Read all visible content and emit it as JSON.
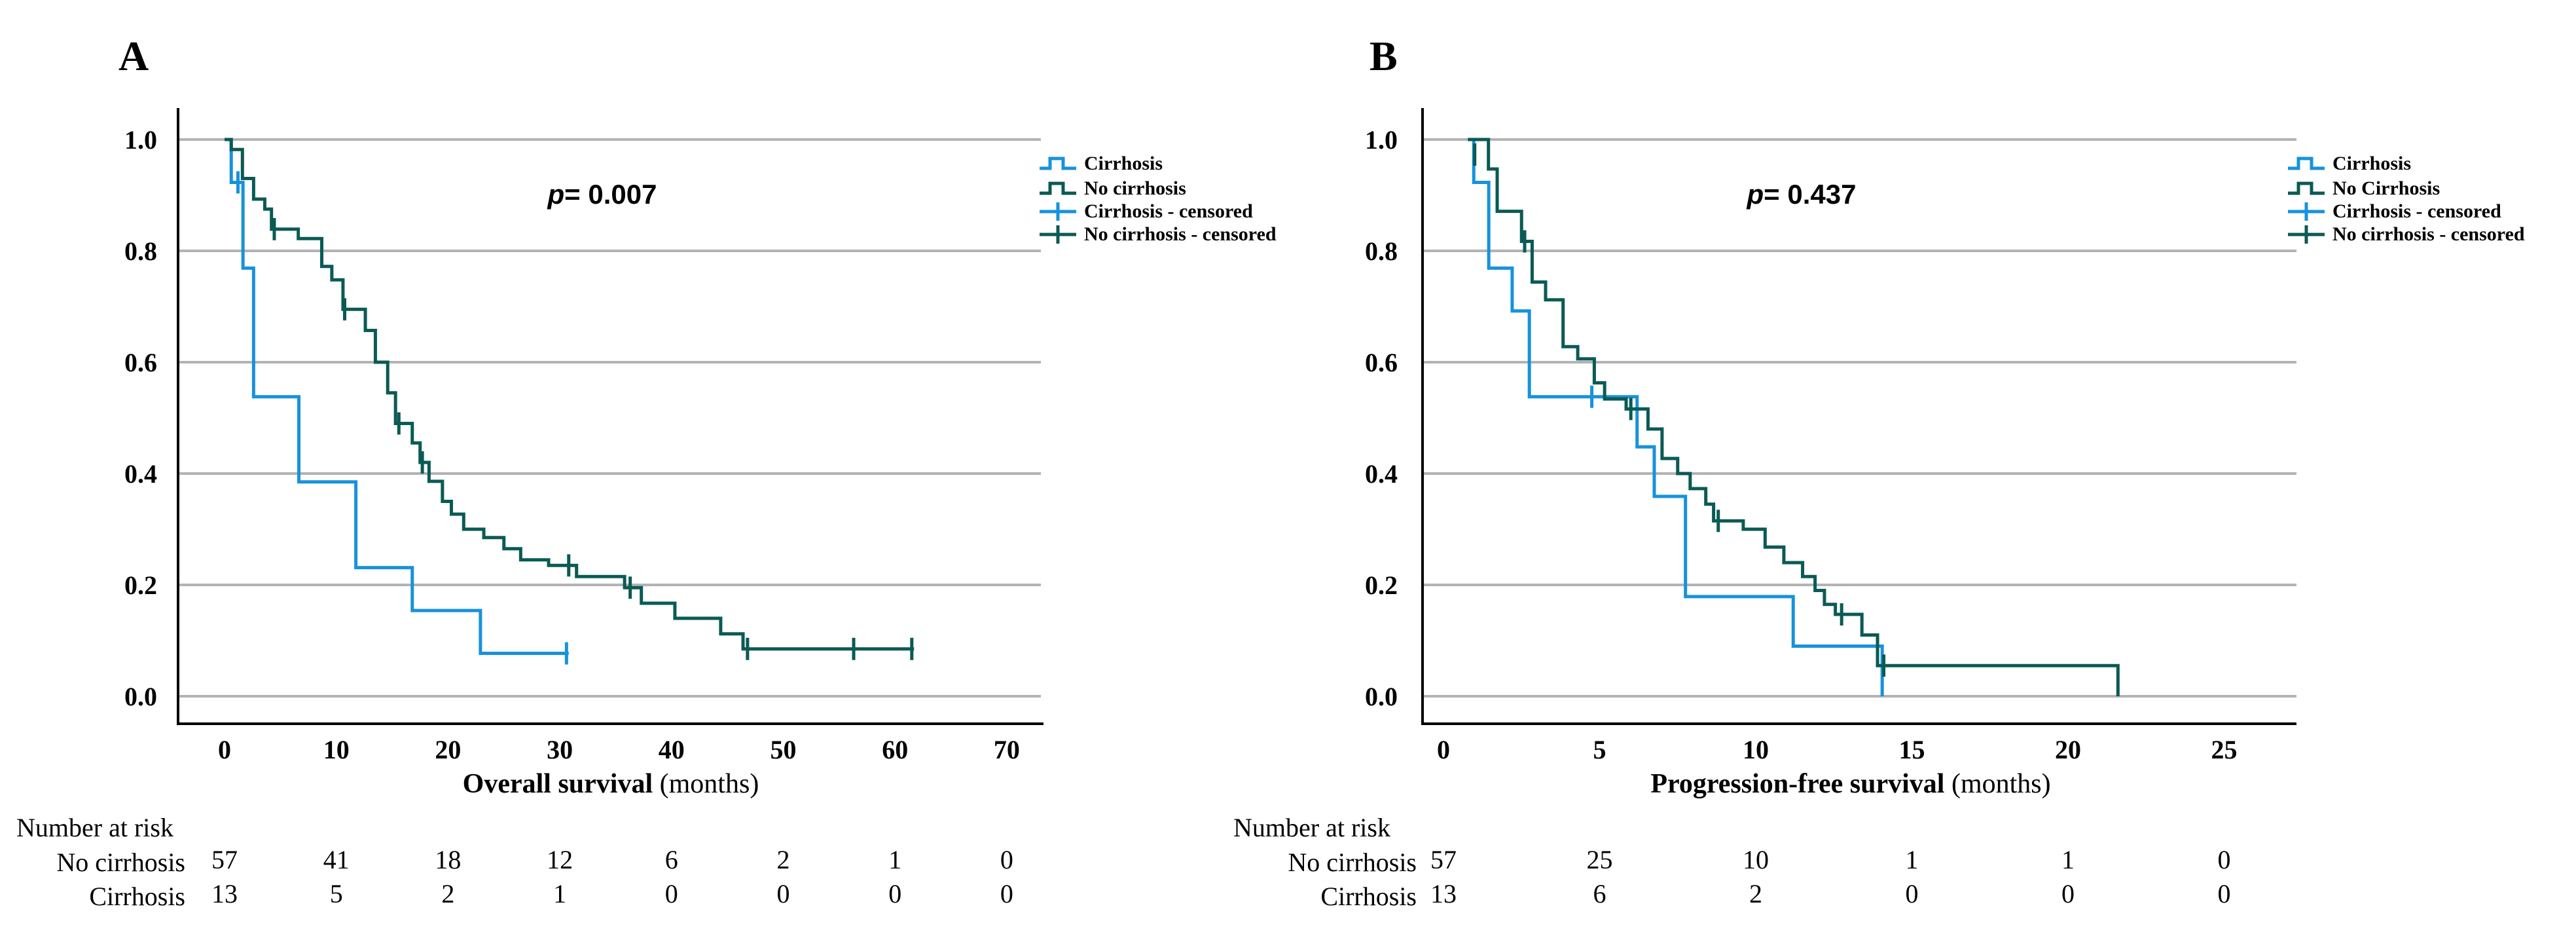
{
  "colors": {
    "cirrhosis": "#1792DB",
    "no_cirrhosis": "#0B5A54",
    "grid": "#B3B3B3",
    "axis": "#000000"
  },
  "chart_data": [
    {
      "type": "line",
      "subtype": "kaplan-meier-step",
      "panel_label": "A",
      "title": "",
      "p_value": {
        "symbol": "p",
        "rest": "= 0.007"
      },
      "xlabel_bold": "Overall survival",
      "xlabel_unit": " (months)",
      "ylabel": "",
      "xticks": [
        0,
        10,
        20,
        30,
        40,
        50,
        60,
        70
      ],
      "yticks": [
        "1.0",
        "0.8",
        "0.6",
        "0.4",
        "0.2",
        "0.0"
      ],
      "xlim": [
        0,
        73.5
      ],
      "ylim": [
        0,
        1
      ],
      "grid": true,
      "legend_position": "outside-top-right",
      "legend": [
        {
          "label": "Cirrhosis",
          "glyph": "step",
          "color_key": "cirrhosis"
        },
        {
          "label": "No cirrhosis",
          "glyph": "step",
          "color_key": "no_cirrhosis"
        },
        {
          "label": "Cirrhosis - censored",
          "glyph": "plus",
          "color_key": "cirrhosis"
        },
        {
          "label": "No cirrhosis - censored",
          "glyph": "plus",
          "color_key": "no_cirrhosis"
        }
      ],
      "series": [
        {
          "name": "Cirrhosis",
          "color_key": "cirrhosis",
          "steps": [
            [
              0,
              1.0
            ],
            [
              0.6,
              0.923
            ],
            [
              1.65,
              0.769
            ],
            [
              2.6,
              0.538
            ],
            [
              6.65,
              0.385
            ],
            [
              11.75,
              0.231
            ],
            [
              16.8,
              0.154
            ],
            [
              22.9,
              0.077
            ]
          ],
          "end": 30.8,
          "censored": [
            [
              1.2,
              0.923
            ],
            [
              30.6,
              0.077
            ]
          ]
        },
        {
          "name": "No cirrhosis",
          "color_key": "no_cirrhosis",
          "steps": [
            [
              0,
              1.0
            ],
            [
              0.6,
              0.982
            ],
            [
              1.6,
              0.93
            ],
            [
              2.6,
              0.893
            ],
            [
              3.6,
              0.875
            ],
            [
              4.2,
              0.839
            ],
            [
              6.6,
              0.822
            ],
            [
              8.7,
              0.772
            ],
            [
              9.6,
              0.748
            ],
            [
              10.6,
              0.695
            ],
            [
              12.6,
              0.657
            ],
            [
              13.5,
              0.6
            ],
            [
              14.6,
              0.545
            ],
            [
              15.3,
              0.49
            ],
            [
              16.8,
              0.455
            ],
            [
              17.5,
              0.42
            ],
            [
              18.3,
              0.386
            ],
            [
              19.5,
              0.35
            ],
            [
              20.3,
              0.327
            ],
            [
              21.4,
              0.3
            ],
            [
              23.2,
              0.285
            ],
            [
              25.0,
              0.265
            ],
            [
              26.5,
              0.245
            ],
            [
              29.0,
              0.235
            ],
            [
              31.5,
              0.215
            ],
            [
              35.8,
              0.195
            ],
            [
              37.3,
              0.167
            ],
            [
              40.3,
              0.14
            ],
            [
              44.4,
              0.112
            ],
            [
              46.4,
              0.085
            ]
          ],
          "end": 61.7,
          "censored": [
            [
              4.45,
              0.839
            ],
            [
              10.75,
              0.695
            ],
            [
              15.6,
              0.49
            ],
            [
              17.7,
              0.42
            ],
            [
              30.8,
              0.235
            ],
            [
              36.3,
              0.195
            ],
            [
              46.8,
              0.085
            ],
            [
              56.3,
              0.085
            ],
            [
              61.5,
              0.085
            ]
          ]
        }
      ],
      "number_at_risk": {
        "header": "Number at risk",
        "rows": [
          {
            "label": "No cirrhosis",
            "values": [
              "57",
              "41",
              "18",
              "12",
              "6",
              "2",
              "1",
              "0"
            ]
          },
          {
            "label": "Cirrhosis",
            "values": [
              "13",
              "5",
              "2",
              "1",
              "0",
              "0",
              "0",
              "0"
            ]
          }
        ]
      }
    },
    {
      "type": "line",
      "subtype": "kaplan-meier-step",
      "panel_label": "B",
      "title": "",
      "p_value": {
        "symbol": "p",
        "rest": "= 0.437"
      },
      "xlabel_bold": "Progression-free survival",
      "xlabel_unit": " (months)",
      "ylabel": "",
      "xticks": [
        0,
        5,
        10,
        15,
        20,
        25
      ],
      "yticks": [
        "1.0",
        "0.8",
        "0.6",
        "0.4",
        "0.2",
        "0.0"
      ],
      "xlim": [
        0,
        27.3
      ],
      "ylim": [
        0,
        1
      ],
      "grid": true,
      "legend_position": "outside-top-right",
      "legend": [
        {
          "label": "Cirrhosis",
          "glyph": "step",
          "color_key": "cirrhosis"
        },
        {
          "label": "No Cirrhosis",
          "glyph": "step",
          "color_key": "no_cirrhosis"
        },
        {
          "label": "Cirrhosis - censored",
          "glyph": "plus",
          "color_key": "cirrhosis"
        },
        {
          "label": "No cirrhosis - censored",
          "glyph": "plus",
          "color_key": "no_cirrhosis"
        }
      ],
      "series": [
        {
          "name": "Cirrhosis",
          "color_key": "cirrhosis",
          "steps": [
            [
              0.82,
              1.0
            ],
            [
              0.97,
              0.923
            ],
            [
              1.45,
              0.769
            ],
            [
              2.2,
              0.692
            ],
            [
              2.75,
              0.538
            ],
            [
              6.2,
              0.448
            ],
            [
              6.75,
              0.359
            ],
            [
              7.75,
              0.179
            ],
            [
              11.2,
              0.09
            ],
            [
              14.05,
              0.0
            ]
          ],
          "end": 14.05,
          "censored": [
            [
              4.75,
              0.538
            ]
          ]
        },
        {
          "name": "No Cirrhosis",
          "color_key": "no_cirrhosis",
          "steps": [
            [
              0.78,
              1.0
            ],
            [
              1.44,
              0.947
            ],
            [
              1.72,
              0.871
            ],
            [
              2.5,
              0.817
            ],
            [
              2.84,
              0.744
            ],
            [
              3.27,
              0.712
            ],
            [
              3.83,
              0.628
            ],
            [
              4.3,
              0.606
            ],
            [
              4.83,
              0.563
            ],
            [
              5.16,
              0.534
            ],
            [
              5.85,
              0.516
            ],
            [
              6.55,
              0.48
            ],
            [
              7.0,
              0.427
            ],
            [
              7.5,
              0.4
            ],
            [
              7.9,
              0.373
            ],
            [
              8.4,
              0.345
            ],
            [
              8.65,
              0.315
            ],
            [
              9.6,
              0.3
            ],
            [
              10.3,
              0.268
            ],
            [
              10.9,
              0.24
            ],
            [
              11.5,
              0.215
            ],
            [
              11.9,
              0.19
            ],
            [
              12.2,
              0.165
            ],
            [
              12.55,
              0.147
            ],
            [
              13.4,
              0.11
            ],
            [
              13.9,
              0.055
            ],
            [
              21.6,
              0.0
            ]
          ],
          "end": 21.6,
          "censored": [
            [
              1.0,
              0.973
            ],
            [
              2.6,
              0.817
            ],
            [
              6.0,
              0.516
            ],
            [
              8.8,
              0.315
            ],
            [
              12.75,
              0.147
            ],
            [
              14.1,
              0.055
            ]
          ]
        }
      ],
      "number_at_risk": {
        "header": "Number at risk",
        "rows": [
          {
            "label": "No cirrhosis",
            "values": [
              "57",
              "25",
              "10",
              "1",
              "1",
              "0"
            ]
          },
          {
            "label": "Cirrhosis",
            "values": [
              "13",
              "6",
              "2",
              "0",
              "0",
              "0"
            ]
          }
        ]
      }
    }
  ]
}
